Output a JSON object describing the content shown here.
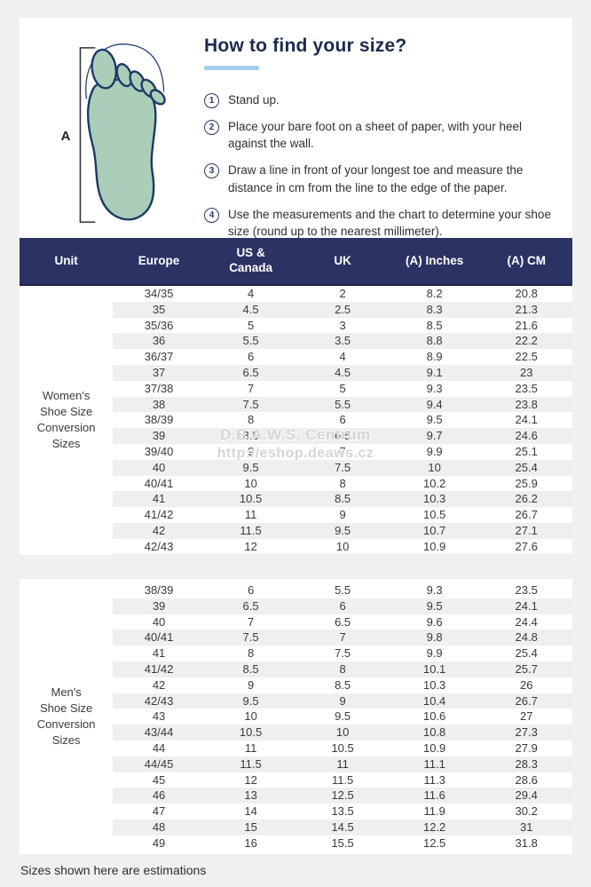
{
  "page": {
    "background_color": "#f0f0f1",
    "card_color": "#ffffff"
  },
  "intro": {
    "title": "How to find your size?",
    "accent_color": "#a3cdeb",
    "foot_dimension_label": "A",
    "steps": [
      {
        "num": "1",
        "text": "Stand up."
      },
      {
        "num": "2",
        "text": "Place your bare foot on a sheet of paper, with your heel against the wall."
      },
      {
        "num": "3",
        "text": "Draw a line in front of your longest toe and measure the distance in cm from the line to the edge of the paper."
      },
      {
        "num": "4",
        "text": "Use the measurements and the chart to determine your shoe size (round up to the nearest millimeter)."
      }
    ]
  },
  "table": {
    "header_color": "#2b3364",
    "stripe_color": "#efefef",
    "columns": [
      "Unit",
      "Europe",
      [
        "US &",
        "Canada"
      ],
      "UK",
      "(A) Inches",
      "(A) CM"
    ],
    "sections": [
      {
        "unit_label": "Women's Shoe Size Conversion Sizes",
        "unit_label_lines": [
          "Women's",
          "Shoe Size",
          "Conversion",
          "Sizes"
        ],
        "rows": [
          [
            "34/35",
            "4",
            "2",
            "8.2",
            "20.8"
          ],
          [
            "35",
            "4.5",
            "2.5",
            "8.3",
            "21.3"
          ],
          [
            "35/36",
            "5",
            "3",
            "8.5",
            "21.6"
          ],
          [
            "36",
            "5.5",
            "3.5",
            "8.8",
            "22.2"
          ],
          [
            "36/37",
            "6",
            "4",
            "8.9",
            "22.5"
          ],
          [
            "37",
            "6.5",
            "4.5",
            "9.1",
            "23"
          ],
          [
            "37/38",
            "7",
            "5",
            "9.3",
            "23.5"
          ],
          [
            "38",
            "7.5",
            "5.5",
            "9.4",
            "23.8"
          ],
          [
            "38/39",
            "8",
            "6",
            "9.5",
            "24.1"
          ],
          [
            "39",
            "8.5",
            "6.5",
            "9.7",
            "24.6"
          ],
          [
            "39/40",
            "9",
            "7",
            "9.9",
            "25.1"
          ],
          [
            "40",
            "9.5",
            "7.5",
            "10",
            "25.4"
          ],
          [
            "40/41",
            "10",
            "8",
            "10.2",
            "25.9"
          ],
          [
            "41",
            "10.5",
            "8.5",
            "10.3",
            "26.2"
          ],
          [
            "41/42",
            "11",
            "9",
            "10.5",
            "26.7"
          ],
          [
            "42",
            "11.5",
            "9.5",
            "10.7",
            "27.1"
          ],
          [
            "42/43",
            "12",
            "10",
            "10.9",
            "27.6"
          ]
        ]
      },
      {
        "unit_label": "Men's Shoe Size Conversion Sizes",
        "unit_label_lines": [
          "Men's",
          "Shoe Size",
          "Conversion",
          "Sizes"
        ],
        "rows": [
          [
            "38/39",
            "6",
            "5.5",
            "9.3",
            "23.5"
          ],
          [
            "39",
            "6.5",
            "6",
            "9.5",
            "24.1"
          ],
          [
            "40",
            "7",
            "6.5",
            "9.6",
            "24.4"
          ],
          [
            "40/41",
            "7.5",
            "7",
            "9.8",
            "24.8"
          ],
          [
            "41",
            "8",
            "7.5",
            "9.9",
            "25.4"
          ],
          [
            "41/42",
            "8.5",
            "8",
            "10.1",
            "25.7"
          ],
          [
            "42",
            "9",
            "8.5",
            "10.3",
            "26"
          ],
          [
            "42/43",
            "9.5",
            "9",
            "10.4",
            "26.7"
          ],
          [
            "43",
            "10",
            "9.5",
            "10.6",
            "27"
          ],
          [
            "43/44",
            "10.5",
            "10",
            "10.8",
            "27.3"
          ],
          [
            "44",
            "11",
            "10.5",
            "10.9",
            "27.9"
          ],
          [
            "44/45",
            "11.5",
            "11",
            "11.1",
            "28.3"
          ],
          [
            "45",
            "12",
            "11.5",
            "11.3",
            "28.6"
          ],
          [
            "46",
            "13",
            "12.5",
            "11.6",
            "29.4"
          ],
          [
            "47",
            "14",
            "13.5",
            "11.9",
            "30.2"
          ],
          [
            "48",
            "15",
            "14.5",
            "12.2",
            "31"
          ],
          [
            "49",
            "16",
            "15.5",
            "12.5",
            "31.8"
          ]
        ]
      }
    ]
  },
  "watermark": {
    "line1": "D.E.A.W.S. Centrum",
    "line2": "http://eshop.deaws.cz"
  },
  "footer": {
    "note": "Sizes shown here are estimations"
  }
}
